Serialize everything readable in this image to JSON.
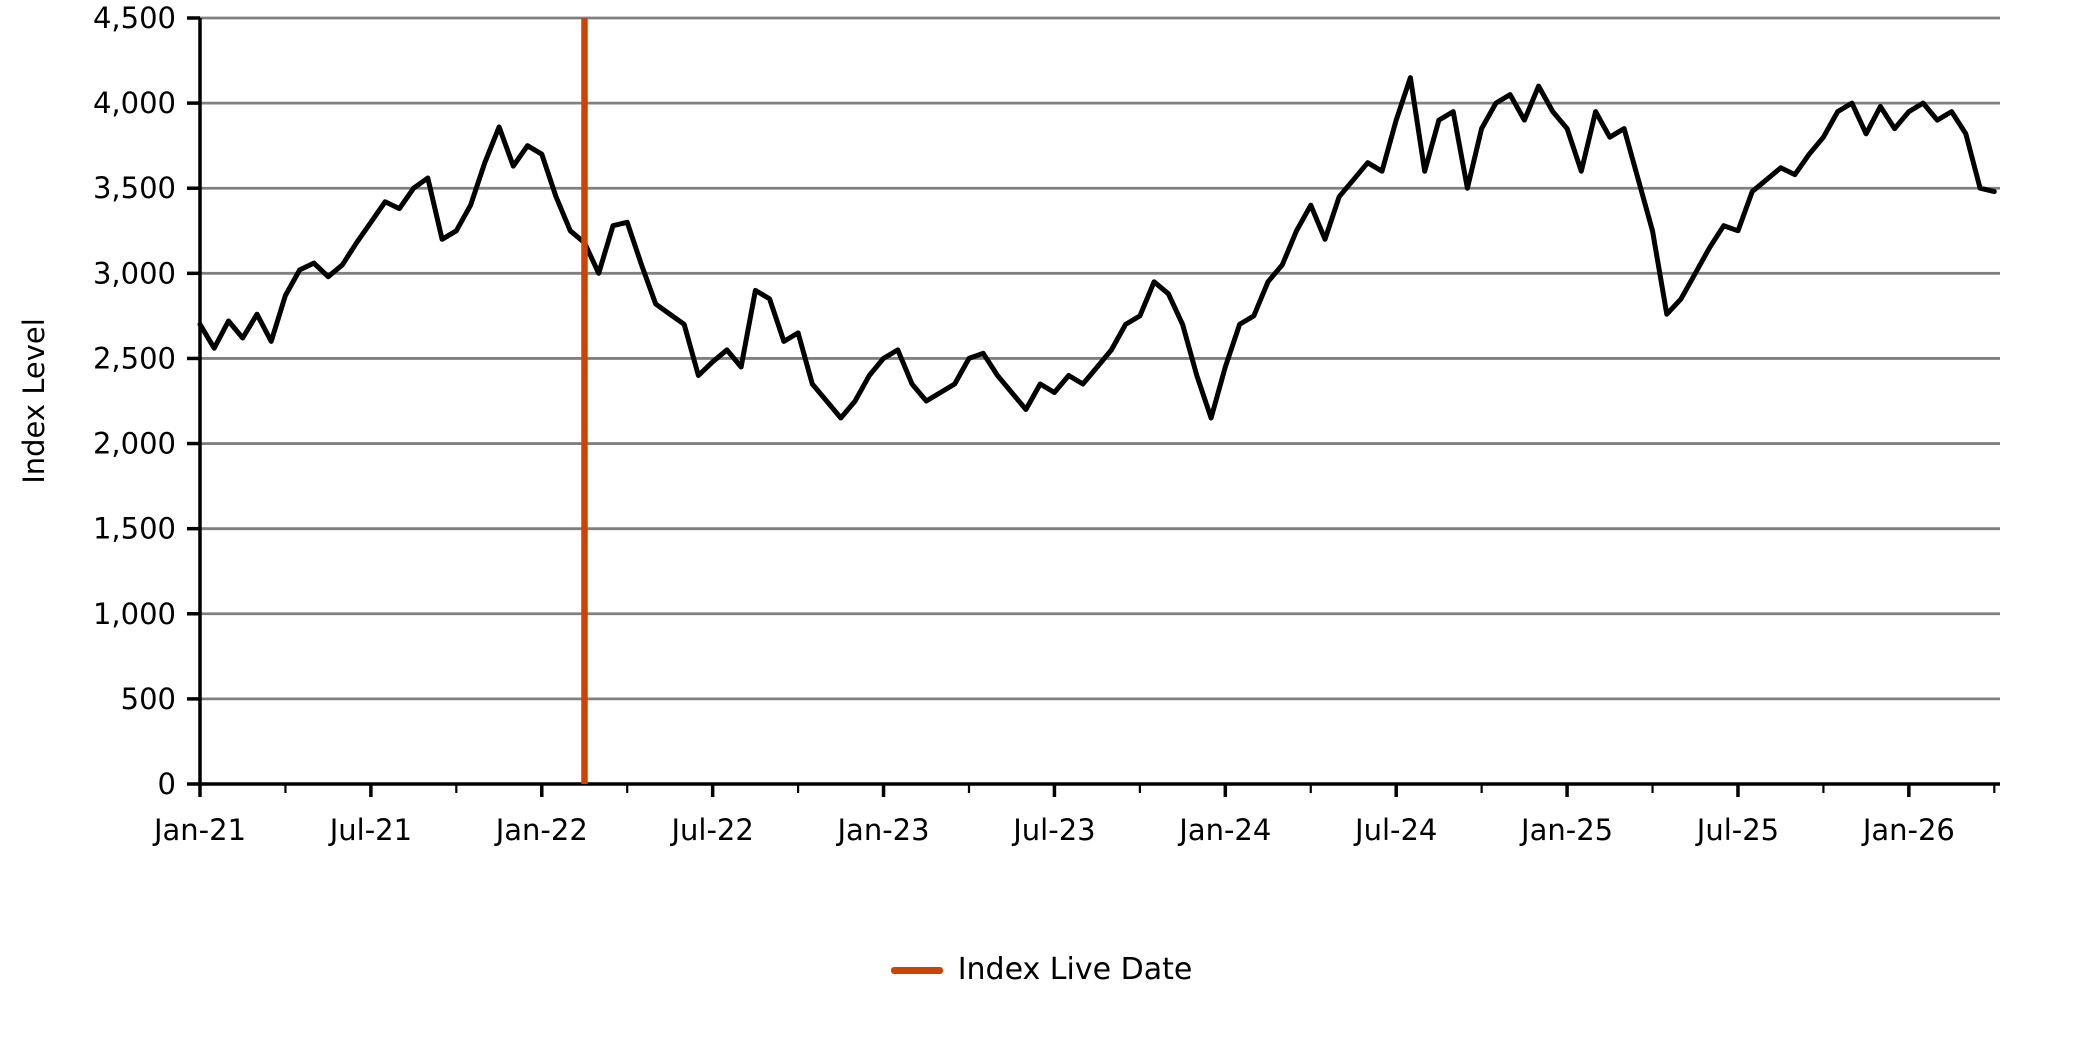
{
  "chart_data": {
    "type": "line",
    "title": "",
    "xlabel": "",
    "ylabel": "Index Level",
    "ylim": [
      0,
      4500
    ],
    "x_domain_months": [
      0,
      63.2
    ],
    "grid": true,
    "grid_color": "#808080",
    "legend_position": "bottom-center",
    "y_ticks": [
      {
        "value": 0,
        "label": "0"
      },
      {
        "value": 500,
        "label": "500"
      },
      {
        "value": 1000,
        "label": "1,000"
      },
      {
        "value": 1500,
        "label": "1,500"
      },
      {
        "value": 2000,
        "label": "2,000"
      },
      {
        "value": 2500,
        "label": "2,500"
      },
      {
        "value": 3000,
        "label": "3,000"
      },
      {
        "value": 3500,
        "label": "3,500"
      },
      {
        "value": 4000,
        "label": "4,000"
      },
      {
        "value": 4500,
        "label": "4,500"
      }
    ],
    "x_ticks": [
      {
        "month": 0,
        "label": "Jan-21"
      },
      {
        "month": 6,
        "label": "Jul-21"
      },
      {
        "month": 12,
        "label": "Jan-22"
      },
      {
        "month": 18,
        "label": "Jul-22"
      },
      {
        "month": 24,
        "label": "Jan-23"
      },
      {
        "month": 30,
        "label": "Jul-23"
      },
      {
        "month": 36,
        "label": "Jan-24"
      },
      {
        "month": 42,
        "label": "Jul-24"
      },
      {
        "month": 48,
        "label": "Jan-25"
      },
      {
        "month": 54,
        "label": "Jul-25"
      },
      {
        "month": 60,
        "label": "Jan-26"
      }
    ],
    "x_minor_tick_months": [
      3,
      9,
      15,
      21,
      27,
      33,
      39,
      45,
      51,
      57,
      63
    ],
    "series": [
      {
        "name": "Index Level",
        "color": "#000000",
        "start_month": "2021-01",
        "points_per_month": 2,
        "values": [
          2700,
          2560,
          2720,
          2620,
          2760,
          2600,
          2870,
          3020,
          3060,
          2980,
          3050,
          3180,
          3300,
          3420,
          3380,
          3500,
          3560,
          3200,
          3250,
          3400,
          3650,
          3860,
          3630,
          3750,
          3700,
          3450,
          3250,
          3180,
          3000,
          3280,
          3300,
          3050,
          2820,
          2760,
          2700,
          2400,
          2480,
          2550,
          2450,
          2900,
          2850,
          2600,
          2650,
          2350,
          2250,
          2150,
          2250,
          2400,
          2500,
          2550,
          2350,
          2250,
          2300,
          2350,
          2500,
          2530,
          2400,
          2300,
          2200,
          2350,
          2300,
          2400,
          2350,
          2450,
          2550,
          2700,
          2750,
          2950,
          2880,
          2700,
          2400,
          2150,
          2450,
          2700,
          2750,
          2950,
          3050,
          3250,
          3400,
          3200,
          3450,
          3550,
          3650,
          3600,
          3900,
          4150,
          3600,
          3900,
          3950,
          3500,
          3850,
          4000,
          4050,
          3900,
          4100,
          3950,
          3850,
          3600,
          3950,
          3800,
          3850,
          3550,
          3250,
          2760,
          2850,
          3000,
          3150,
          3280,
          3250,
          3480,
          3550,
          3620,
          3580,
          3700,
          3800,
          3950,
          4000,
          3820,
          3980,
          3850,
          3950,
          4000,
          3900,
          3950,
          3820,
          3500,
          3480
        ]
      }
    ],
    "live_date_marker": {
      "label": "Index Live Date",
      "color": "#cc4400",
      "month": 13.5
    },
    "legend": {
      "entries": [
        {
          "label": "Index Live Date",
          "color": "#cc4400"
        }
      ]
    }
  }
}
